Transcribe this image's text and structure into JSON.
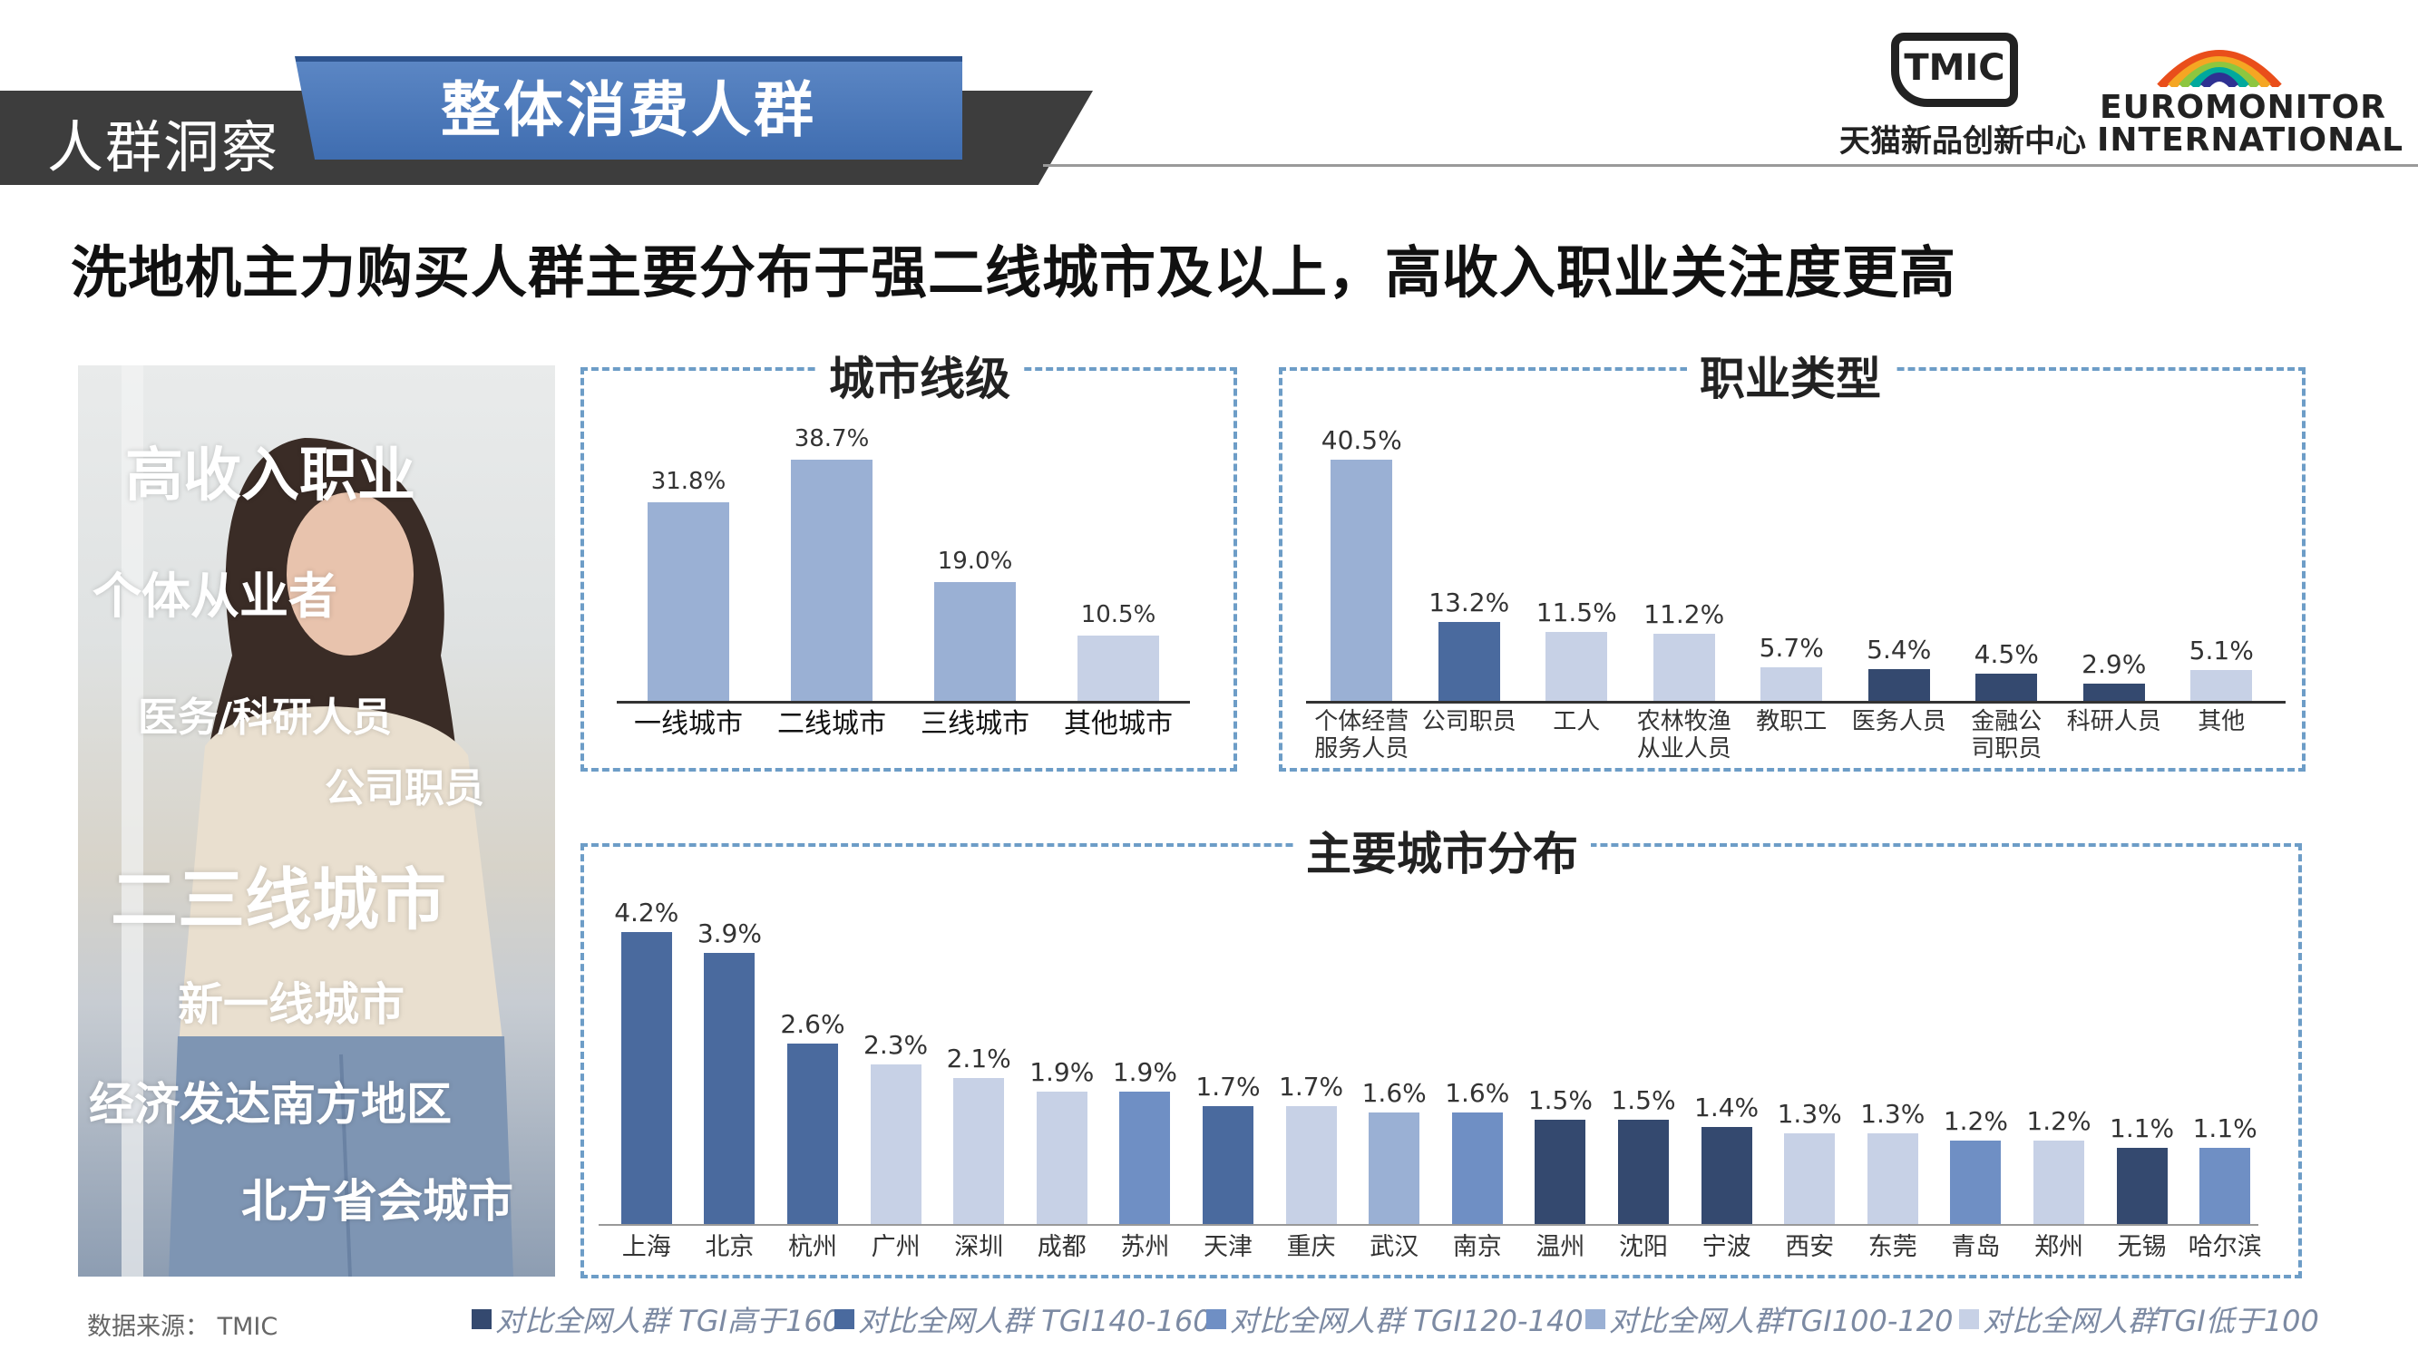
{
  "header": {
    "section_label": "人群洞察",
    "section_title": "整体消费人群",
    "tmic_logo_text": "TMIC",
    "tmic_cn": "天猫新品创新中心",
    "euromonitor_line1": "EUROMONITOR",
    "euromonitor_line2": "INTERNATIONAL"
  },
  "headline": "洗地机主力购买人群主要分布于强二线城市及以上，高收入职业关注度更高",
  "photo_texts": [
    "高收入职业",
    "个体从业者",
    "医务/科研人员",
    "公司职员",
    "二三线城市",
    "新一线城市",
    "经济发达南方地区",
    "北方省会城市"
  ],
  "colors": {
    "tgi_above_160": "#4c6a9c",
    "tgi_140_160": "#4f6fa8",
    "tgi_120_140": "#7694c6",
    "tgi_100_120": "#9db2d6",
    "tgi_below_100": "#c7d1e6",
    "accent_blue": "#4a7bc0",
    "dashed_border": "#6d9dc7"
  },
  "chart_data": [
    {
      "type": "bar",
      "title": "城市线级",
      "categories": [
        "一线城市",
        "二线城市",
        "三线城市",
        "其他城市"
      ],
      "values": [
        31.8,
        38.7,
        19.0,
        10.5
      ],
      "labels": [
        "31.8%",
        "38.7%",
        "19.0%",
        "10.5%"
      ],
      "colors": [
        "#9ab0d4",
        "#9ab0d4",
        "#9ab0d4",
        "#c7d1e6"
      ],
      "ylim": [
        0,
        40
      ]
    },
    {
      "type": "bar",
      "title": "职业类型",
      "categories": [
        "个体经营\n服务人员",
        "公司职员",
        "工人",
        "农林牧渔\n从业人员",
        "教职工",
        "医务人员",
        "金融公\n司职员",
        "科研人员",
        "其他"
      ],
      "values": [
        40.5,
        13.2,
        11.5,
        11.2,
        5.7,
        5.4,
        4.5,
        2.9,
        5.1
      ],
      "labels": [
        "40.5%",
        "13.2%",
        "11.5%",
        "11.2%",
        "5.7%",
        "5.4%",
        "4.5%",
        "2.9%",
        "5.1%"
      ],
      "colors": [
        "#9ab0d4",
        "#4a6a9e",
        "#c7d1e6",
        "#c7d1e6",
        "#c7d1e6",
        "#34496f",
        "#34496f",
        "#34496f",
        "#c7d1e6"
      ],
      "ylim": [
        0,
        42
      ]
    },
    {
      "type": "bar",
      "title": "主要城市分布",
      "categories": [
        "上海",
        "北京",
        "杭州",
        "广州",
        "深圳",
        "成都",
        "苏州",
        "天津",
        "重庆",
        "武汉",
        "南京",
        "温州",
        "沈阳",
        "宁波",
        "西安",
        "东莞",
        "青岛",
        "郑州",
        "无锡",
        "哈尔滨"
      ],
      "values": [
        4.2,
        3.9,
        2.6,
        2.3,
        2.1,
        1.9,
        1.9,
        1.7,
        1.7,
        1.6,
        1.6,
        1.5,
        1.5,
        1.4,
        1.3,
        1.3,
        1.2,
        1.2,
        1.1,
        1.1
      ],
      "labels": [
        "4.2%",
        "3.9%",
        "2.6%",
        "2.3%",
        "2.1%",
        "1.9%",
        "1.9%",
        "1.7%",
        "1.7%",
        "1.6%",
        "1.6%",
        "1.5%",
        "1.5%",
        "1.4%",
        "1.3%",
        "1.3%",
        "1.2%",
        "1.2%",
        "1.1%",
        "1.1%"
      ],
      "colors": [
        "#4a6a9e",
        "#4a6a9e",
        "#4a6a9e",
        "#c7d1e6",
        "#c7d1e6",
        "#c7d1e6",
        "#6f8fc4",
        "#4a6a9e",
        "#c7d1e6",
        "#9ab0d4",
        "#6f8fc4",
        "#34496f",
        "#34496f",
        "#34496f",
        "#c7d1e6",
        "#c7d1e6",
        "#6f8fc4",
        "#c7d1e6",
        "#34496f",
        "#6f8fc4"
      ],
      "ylim": [
        0,
        4.5
      ]
    }
  ],
  "legend": [
    {
      "label": "对比全网人群 TGI高于160",
      "color": "#34496f"
    },
    {
      "label": "对比全网人群 TGI140-160",
      "color": "#4a6a9e"
    },
    {
      "label": "对比全网人群 TGI120-140",
      "color": "#6f8fc4"
    },
    {
      "label": "对比全网人群TGI100-120",
      "color": "#9ab0d4"
    },
    {
      "label": "对比全网人群TGI低于100",
      "color": "#c7d1e6"
    }
  ],
  "source": "数据来源： TMIC"
}
